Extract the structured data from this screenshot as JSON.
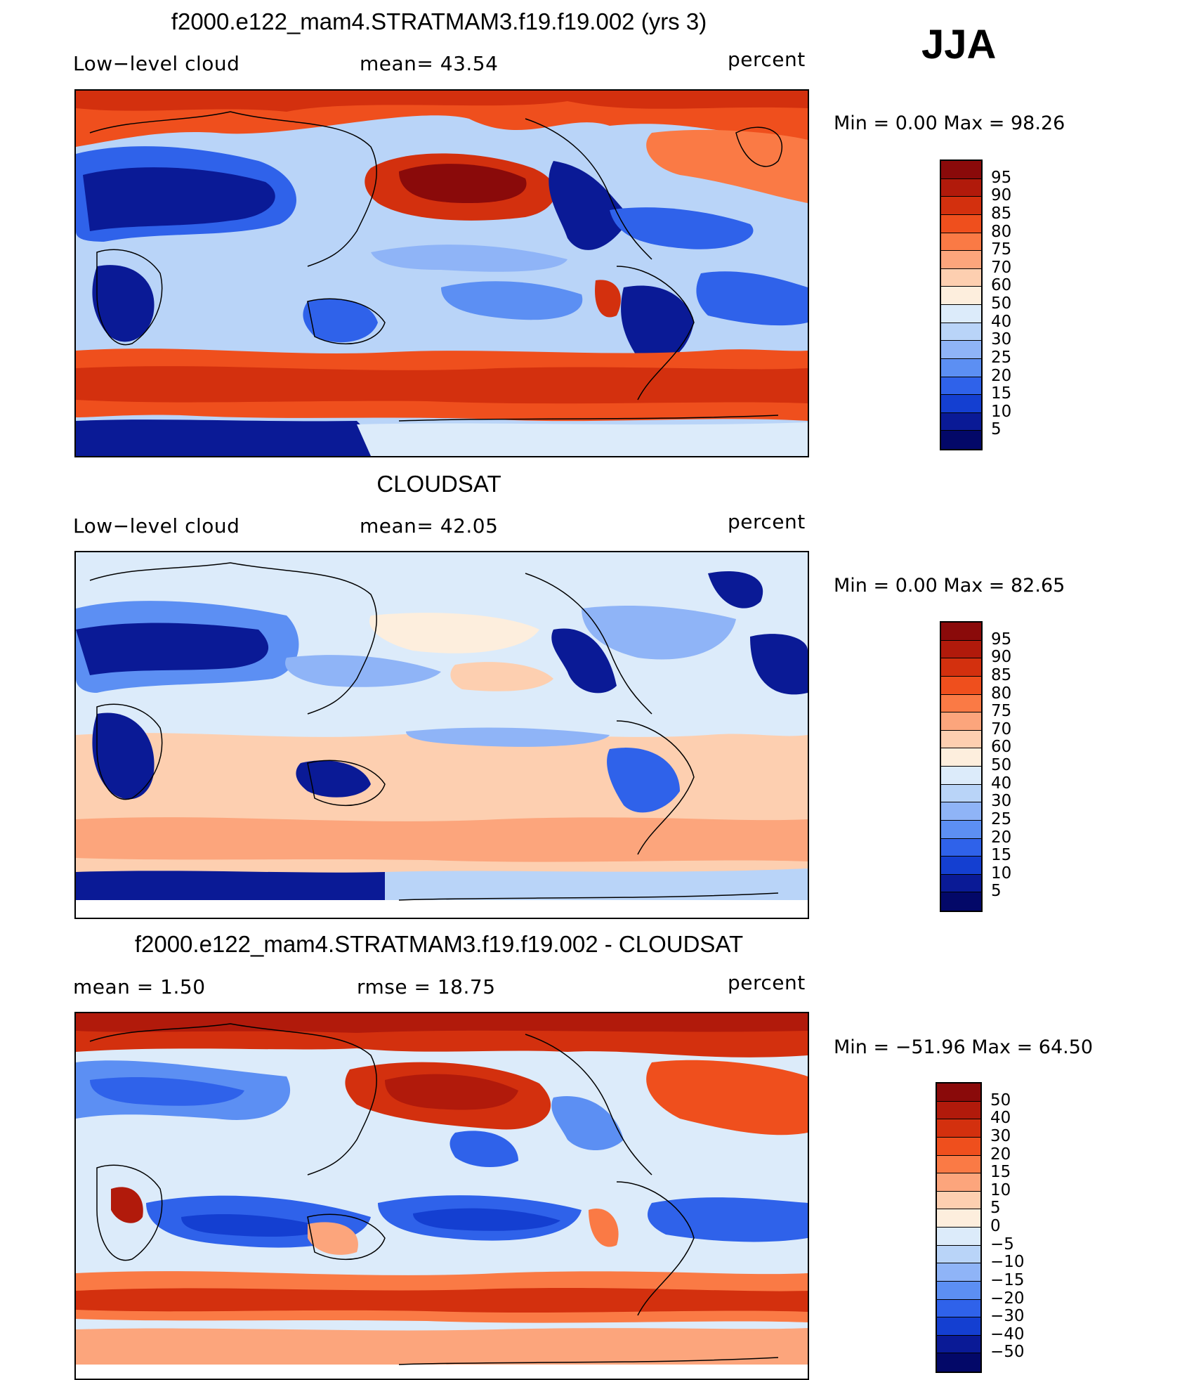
{
  "season": "JJA",
  "panels": [
    {
      "title": "f2000.e122_mam4.STRATMAM3.f19.f19.002 (yrs 3)",
      "left_label": "Low−level cloud",
      "mid_label": "mean=   43.54",
      "right_label": "percent",
      "minmax": "Min  =     0.00  Max  =    98.26",
      "colorbar_labels": [
        "95",
        "90",
        "85",
        "80",
        "75",
        "70",
        "60",
        "50",
        "40",
        "30",
        "25",
        "20",
        "15",
        "10",
        "5"
      ],
      "colorbar_colors": [
        "#8a0a0a",
        "#b11a0b",
        "#d3300e",
        "#ef4f1d",
        "#fa7a45",
        "#fca57c",
        "#fdcfb0",
        "#fdeedd",
        "#dcebfa",
        "#b9d4f8",
        "#8fb4f7",
        "#5c8ff3",
        "#2f62ea",
        "#143fd1",
        "#0a1a96",
        "#030868"
      ]
    },
    {
      "title": "CLOUDSAT",
      "left_label": "Low−level cloud",
      "mid_label": "mean=   42.05",
      "right_label": "percent",
      "minmax": "Min  =     0.00  Max  =    82.65",
      "colorbar_labels": [
        "95",
        "90",
        "85",
        "80",
        "75",
        "70",
        "60",
        "50",
        "40",
        "30",
        "25",
        "20",
        "15",
        "10",
        "5"
      ],
      "colorbar_colors": [
        "#8a0a0a",
        "#b11a0b",
        "#d3300e",
        "#ef4f1d",
        "#fa7a45",
        "#fca57c",
        "#fdcfb0",
        "#fdeedd",
        "#dcebfa",
        "#b9d4f8",
        "#8fb4f7",
        "#5c8ff3",
        "#2f62ea",
        "#143fd1",
        "#0a1a96",
        "#030868"
      ]
    },
    {
      "title": "f2000.e122_mam4.STRATMAM3.f19.f19.002 - CLOUDSAT",
      "left_label": "mean  =     1.50",
      "mid_label": "rmse  =    18.75",
      "right_label": "percent",
      "minmax": "Min  =  −51.96  Max  =    64.50",
      "colorbar_labels": [
        "50",
        "40",
        "30",
        "20",
        "15",
        "10",
        "5",
        "0",
        "−5",
        "−10",
        "−15",
        "−20",
        "−30",
        "−40",
        "−50"
      ],
      "colorbar_colors": [
        "#8a0a0a",
        "#b11a0b",
        "#d3300e",
        "#ef4f1d",
        "#fa7a45",
        "#fca57c",
        "#fdcfb0",
        "#fdeedd",
        "#dcebfa",
        "#b9d4f8",
        "#8fb4f7",
        "#5c8ff3",
        "#2f62ea",
        "#143fd1",
        "#0a1a96",
        "#030868"
      ]
    }
  ]
}
